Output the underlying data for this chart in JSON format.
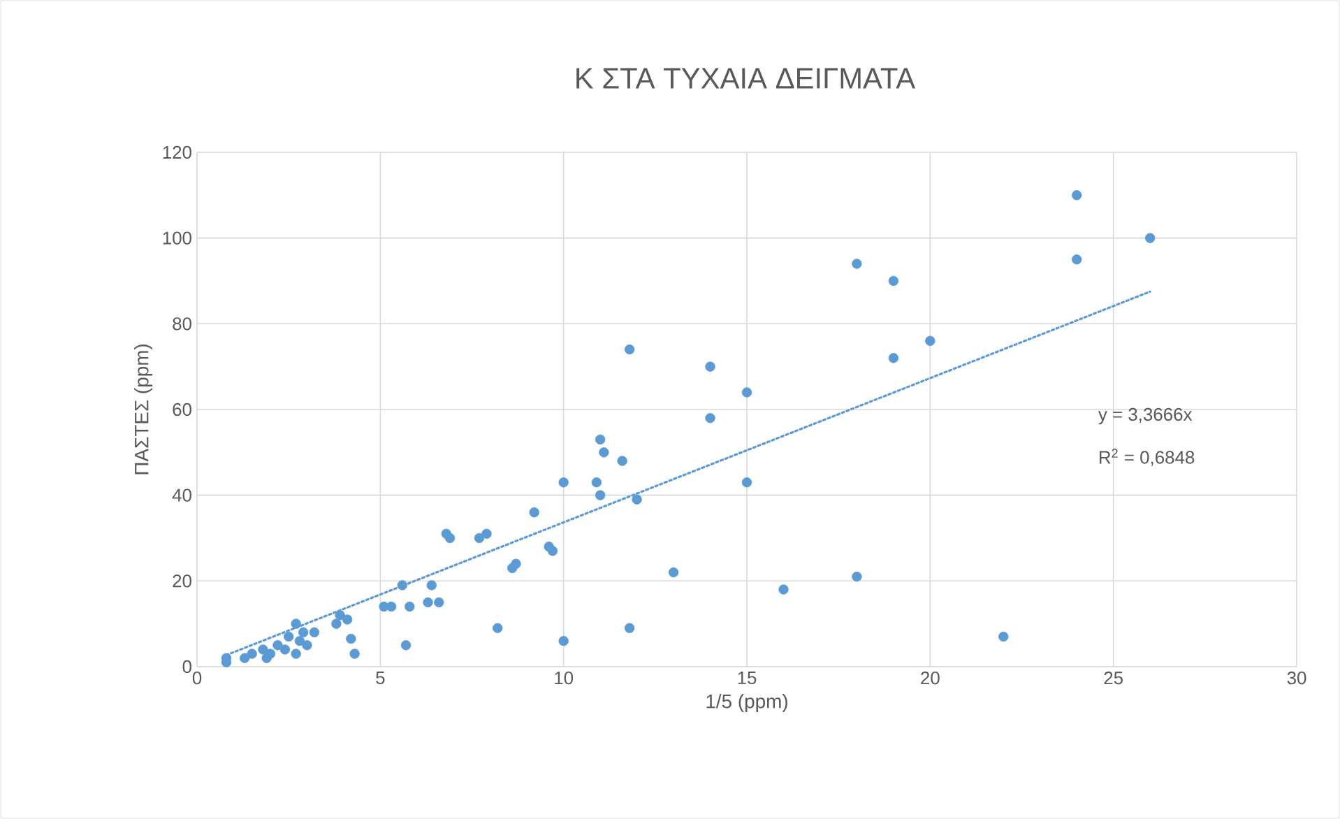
{
  "chart_data": {
    "type": "scatter",
    "title": "Κ ΣΤΑ ΤΥΧΑΙΑ ΔΕΙΓΜΑΤΑ",
    "xlabel": "1/5 (ppm)",
    "ylabel": "ΠΑΣΤΕΣ (ppm)",
    "xlim": [
      0,
      30
    ],
    "xticks": [
      0,
      5,
      10,
      15,
      20,
      25,
      30
    ],
    "ylim": [
      0,
      120
    ],
    "yticks": [
      0,
      20,
      40,
      60,
      80,
      100,
      120
    ],
    "grid": true,
    "series": [
      {
        "color": "#5b9bd5",
        "marker": "circle",
        "x": [
          0.8,
          0.8,
          1.3,
          1.5,
          1.8,
          2,
          1.9,
          2.2,
          2.4,
          2.5,
          2.7,
          2.8,
          2.9,
          2.7,
          3,
          3.2,
          3.8,
          3.9,
          4.1,
          4.2,
          4.3,
          5.1,
          5.3,
          5.6,
          5.8,
          5.7,
          6.3,
          6.4,
          6.6,
          6.8,
          6.9,
          7.7,
          7.9,
          8.2,
          8.6,
          8.7,
          9.2,
          9.6,
          9.7,
          10,
          10,
          10.9,
          11,
          11,
          11.1,
          11.6,
          11.8,
          11.8,
          12,
          13,
          14,
          14,
          15,
          15,
          16,
          18,
          18,
          19,
          19,
          20,
          22,
          24,
          24,
          26
        ],
        "values": [
          2,
          1,
          2,
          3,
          4,
          3,
          2,
          5,
          4,
          7,
          10,
          6,
          8,
          3,
          5,
          8,
          10,
          12,
          11,
          6.5,
          3,
          14,
          14,
          19,
          14,
          5,
          15,
          19,
          15,
          31,
          30,
          30,
          31,
          9,
          23,
          24,
          36,
          28,
          27,
          43,
          6,
          43,
          40,
          53,
          50,
          48,
          74,
          9,
          39,
          22,
          70,
          58,
          64,
          43,
          18,
          94,
          21,
          90,
          72,
          76,
          7,
          110,
          95,
          100
        ]
      },
      {
        "type": "line",
        "color": "#5b9bd5",
        "marker": "none",
        "line_style": "dotted",
        "x": [
          0.8,
          26
        ],
        "values": [
          2.7,
          87.5
        ]
      }
    ],
    "annotations": [
      "y = 3,3666x",
      "R$^{2}$ = 0,6848"
    ]
  }
}
